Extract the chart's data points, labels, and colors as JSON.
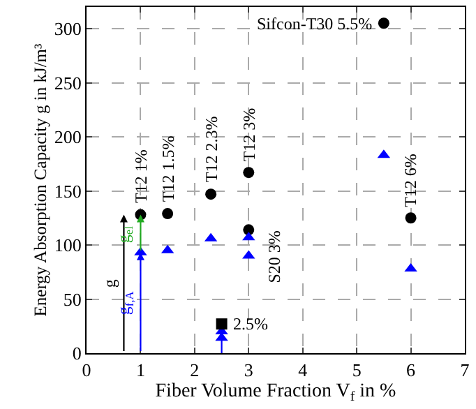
{
  "chart_data": {
    "type": "scatter",
    "xlabel": "Fiber Volume Fraction V$_{f}$ in %",
    "ylabel": "Energy Absorption Capacity g in kJ/m³",
    "xlim": [
      0,
      7
    ],
    "ylim": [
      0,
      320
    ],
    "xticks": [
      0,
      1,
      2,
      3,
      4,
      5,
      6,
      7
    ],
    "yticks": [
      0,
      50,
      100,
      150,
      200,
      250,
      300
    ],
    "grid": true,
    "legend": false,
    "series": [
      {
        "marker": "circle",
        "color": "#000000",
        "x": [
          1,
          1.5,
          2.3,
          3,
          3,
          5.5,
          6
        ],
        "values": [
          128,
          129,
          147,
          167,
          114,
          305,
          125
        ]
      },
      {
        "marker": "triangle",
        "color": "#0000ff",
        "x": [
          1,
          1.5,
          2.3,
          3,
          3,
          5.5,
          6,
          2.5,
          2.5
        ],
        "values": [
          93,
          95,
          106,
          107,
          90,
          183,
          78,
          20,
          14
        ]
      },
      {
        "marker": "square",
        "color": "#000000",
        "x": [
          2.5
        ],
        "values": [
          27
        ]
      },
      {
        "type": "line",
        "color": "#0000ff",
        "x": [
          2.5,
          2.5
        ],
        "values": [
          0,
          20
        ]
      }
    ],
    "annotations": [
      {
        "text": "T12 1%",
        "x": 1,
        "y": 128
      },
      {
        "text": "T12 1.5%",
        "x": 1.5,
        "y": 129
      },
      {
        "text": "T12 2.3%",
        "x": 2.3,
        "y": 147
      },
      {
        "text": "T12 3%",
        "x": 3,
        "y": 167
      },
      {
        "text": "S20 3%",
        "x": 3,
        "y": 114
      },
      {
        "text": "T12 6%",
        "x": 6,
        "y": 125
      },
      {
        "text": "Sifcon-T30 5.5%",
        "x": 5.5,
        "y": 305
      },
      {
        "text": "2.5%",
        "x": 2.5,
        "y": 27
      },
      "g",
      "g$_{f,A}$",
      "g$_{el}$"
    ]
  }
}
